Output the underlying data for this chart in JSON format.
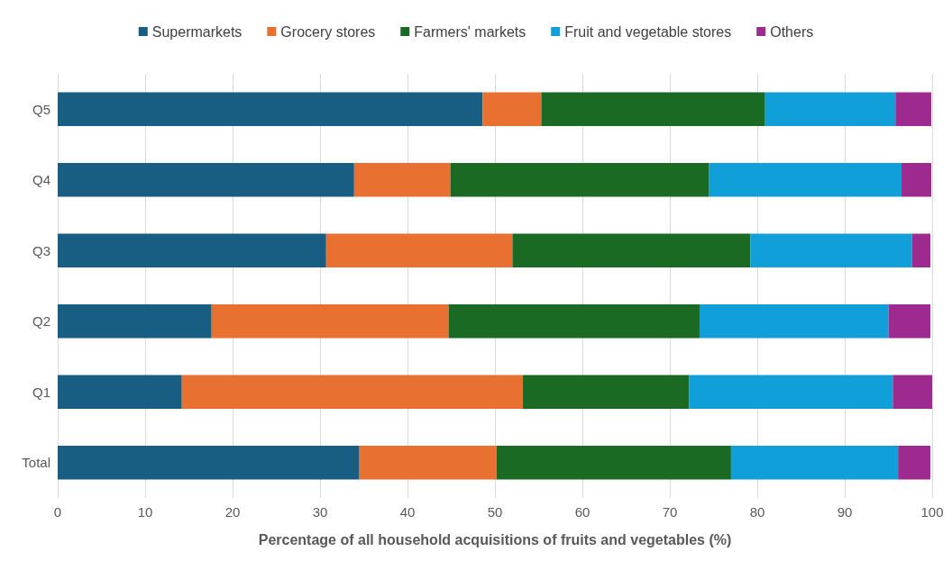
{
  "chart_data": {
    "type": "bar",
    "orientation": "horizontal",
    "stacked": true,
    "xlabel": "Percentage of all household acquisitions of fruits and vegetables (%)",
    "categories": [
      "Q5",
      "Q4",
      "Q3",
      "Q2",
      "Q1",
      "Total"
    ],
    "series": [
      {
        "name": "Supermarkets",
        "color": "#175e82",
        "values": [
          48.6,
          33.9,
          30.7,
          17.6,
          14.2,
          34.5
        ]
      },
      {
        "name": "Grocery stores",
        "color": "#e87131",
        "values": [
          6.7,
          11.0,
          21.3,
          27.1,
          39.0,
          15.7
        ]
      },
      {
        "name": "Farmers' markets",
        "color": "#1b6a23",
        "values": [
          25.6,
          29.6,
          27.2,
          28.7,
          19.0,
          26.8
        ]
      },
      {
        "name": "Fruit and vegetable stores",
        "color": "#109fd8",
        "values": [
          14.9,
          22.0,
          18.5,
          21.6,
          23.3,
          19.1
        ]
      },
      {
        "name": "Others",
        "color": "#9d2a8e",
        "values": [
          4.1,
          3.4,
          2.1,
          4.8,
          4.5,
          3.7
        ]
      }
    ],
    "xlim": [
      0,
      100
    ],
    "xticks": [
      0,
      10,
      20,
      30,
      40,
      50,
      60,
      70,
      80,
      90,
      100
    ],
    "grid": "x",
    "legend": "top"
  }
}
